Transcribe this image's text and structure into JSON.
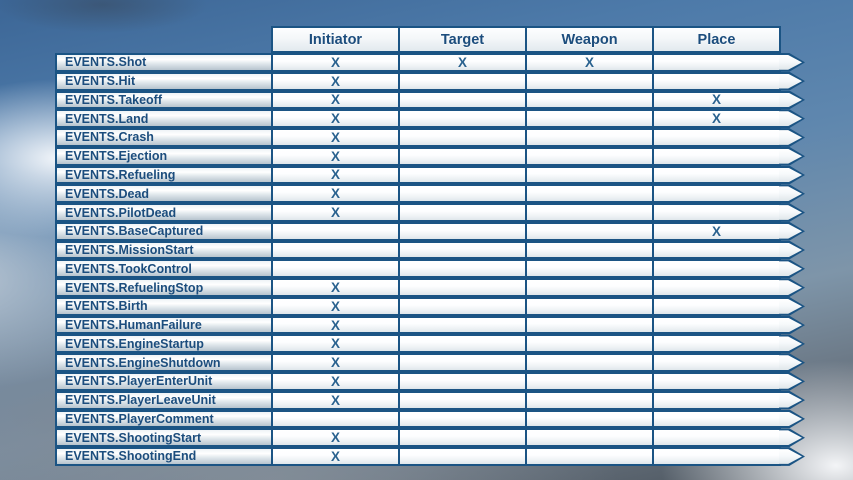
{
  "table": {
    "columns": [
      "Initiator",
      "Target",
      "Weapon",
      "Place"
    ],
    "rows": [
      {
        "label": "EVENTS.Shot",
        "marks": [
          "X",
          "X",
          "X",
          ""
        ]
      },
      {
        "label": "EVENTS.Hit",
        "marks": [
          "X",
          "",
          "",
          ""
        ]
      },
      {
        "label": "EVENTS.Takeoff",
        "marks": [
          "X",
          "",
          "",
          "X"
        ]
      },
      {
        "label": "EVENTS.Land",
        "marks": [
          "X",
          "",
          "",
          "X"
        ]
      },
      {
        "label": "EVENTS.Crash",
        "marks": [
          "X",
          "",
          "",
          ""
        ]
      },
      {
        "label": "EVENTS.Ejection",
        "marks": [
          "X",
          "",
          "",
          ""
        ]
      },
      {
        "label": "EVENTS.Refueling",
        "marks": [
          "X",
          "",
          "",
          ""
        ]
      },
      {
        "label": "EVENTS.Dead",
        "marks": [
          "X",
          "",
          "",
          ""
        ]
      },
      {
        "label": "EVENTS.PilotDead",
        "marks": [
          "X",
          "",
          "",
          ""
        ]
      },
      {
        "label": "EVENTS.BaseCaptured",
        "marks": [
          "",
          "",
          "",
          "X"
        ]
      },
      {
        "label": "EVENTS.MissionStart",
        "marks": [
          "",
          "",
          "",
          ""
        ]
      },
      {
        "label": "EVENTS.TookControl",
        "marks": [
          "",
          "",
          "",
          ""
        ]
      },
      {
        "label": "EVENTS.RefuelingStop",
        "marks": [
          "X",
          "",
          "",
          ""
        ]
      },
      {
        "label": "EVENTS.Birth",
        "marks": [
          "X",
          "",
          "",
          ""
        ]
      },
      {
        "label": "EVENTS.HumanFailure",
        "marks": [
          "X",
          "",
          "",
          ""
        ]
      },
      {
        "label": "EVENTS.EngineStartup",
        "marks": [
          "X",
          "",
          "",
          ""
        ]
      },
      {
        "label": "EVENTS.EngineShutdown",
        "marks": [
          "X",
          "",
          "",
          ""
        ]
      },
      {
        "label": "EVENTS.PlayerEnterUnit",
        "marks": [
          "X",
          "",
          "",
          ""
        ]
      },
      {
        "label": "EVENTS.PlayerLeaveUnit",
        "marks": [
          "X",
          "",
          "",
          ""
        ]
      },
      {
        "label": "EVENTS.PlayerComment",
        "marks": [
          "",
          "",
          "",
          ""
        ]
      },
      {
        "label": "EVENTS.ShootingStart",
        "marks": [
          "X",
          "",
          "",
          ""
        ]
      },
      {
        "label": "EVENTS.ShootingEnd",
        "marks": [
          "X",
          "",
          "",
          ""
        ]
      }
    ]
  },
  "colors": {
    "border": "#1b5484",
    "label_text": "#1c4d7d",
    "mark": "#2a628f"
  }
}
